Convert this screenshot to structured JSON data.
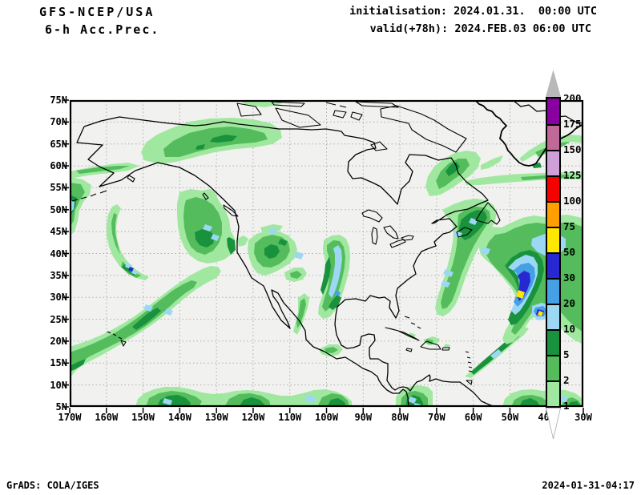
{
  "header": {
    "model": "GFS-NCEP/USA",
    "product": "6-h Acc.Prec.",
    "init_line": "initialisation: 2024.01.31.  00:00 UTC",
    "valid_line": "valid(+78h): 2024.FEB.03 06:00 UTC"
  },
  "footer": {
    "left": "GrADS: COLA/IGES",
    "right": "2024-01-31-04:17"
  },
  "axes": {
    "lat_ticks": [
      "75N",
      "70N",
      "65N",
      "60N",
      "55N",
      "50N",
      "45N",
      "40N",
      "35N",
      "30N",
      "25N",
      "20N",
      "15N",
      "10N",
      "5N"
    ],
    "lon_ticks": [
      "170W",
      "160W",
      "150W",
      "140W",
      "130W",
      "120W",
      "110W",
      "100W",
      "90W",
      "80W",
      "70W",
      "60W",
      "50W",
      "40W",
      "30W"
    ]
  },
  "colorbar": {
    "levels": [
      "1",
      "2",
      "5",
      "10",
      "20",
      "30",
      "50",
      "75",
      "100",
      "125",
      "150",
      "175",
      "200"
    ],
    "range_colors": [
      "#a0e8a0",
      "#54bc5c",
      "#18923c",
      "#9cd8f4",
      "#46a0e6",
      "#2828d2",
      "#ffe800",
      "#ffa000",
      "#f80000",
      "#d0a0d8",
      "#c06898",
      "#8800a0"
    ],
    "above_color": "#b9b9b9",
    "below_color": "#ffffff"
  },
  "map": {
    "background": "#f1f1ef",
    "grid_color": "#aeaeae",
    "coast_color": "#000000",
    "frame_color": "#000000"
  },
  "chart_data": {
    "type": "heatmap",
    "title": "GFS-NCEP/USA 6-h Acc.Prec.",
    "initialisation": "2024.01.31. 00:00 UTC",
    "valid": "+78h, 2024.FEB.03 06:00 UTC",
    "lon_range": [
      "170W",
      "30W"
    ],
    "lat_range": [
      "5N",
      "75N"
    ],
    "lon_tick_interval_deg": 10,
    "lat_tick_interval_deg": 5,
    "grid": "dashed",
    "legend_position": "right",
    "scale_levels": [
      1,
      2,
      5,
      10,
      20,
      30,
      50,
      75,
      100,
      125,
      150,
      175,
      200
    ],
    "scale_colors": [
      "#a0e8a0",
      "#54bc5c",
      "#18923c",
      "#9cd8f4",
      "#46a0e6",
      "#2828d2",
      "#ffe800",
      "#ffa000",
      "#f80000",
      "#d0a0d8",
      "#c06898",
      "#8800a0"
    ],
    "max_shaded_value_on_map": 75,
    "notable_maxima": [
      {
        "approx_location": "31N 47W (central Atlantic storm)",
        "value_range": "50-75"
      },
      {
        "approx_location": "27N 42W (Atlantic)",
        "value_range": "50-75"
      },
      {
        "approx_location": "33N 98W (Texas)",
        "value_range": "10-20"
      },
      {
        "approx_location": "36N 153W (N Pacific)",
        "value_range": "30-50"
      }
    ]
  }
}
